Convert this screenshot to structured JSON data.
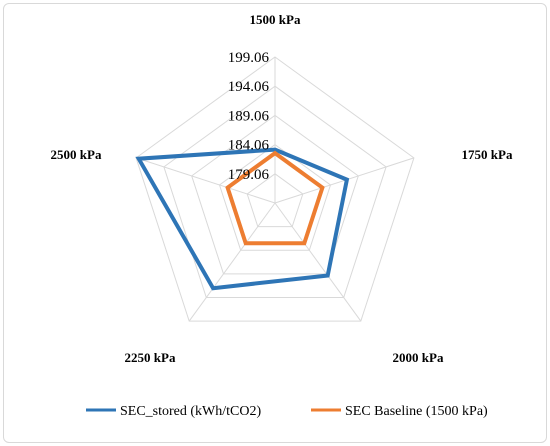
{
  "chart_data": {
    "type": "radar",
    "axes": [
      "1500 kPa",
      "1750 kPa",
      "2000 kPa",
      "2250 kPa",
      "2500 kPa"
    ],
    "ticks": [
      "179.06",
      "184.06",
      "189.06",
      "194.06",
      "199.06"
    ],
    "range": [
      174.06,
      199.06
    ],
    "grid": true,
    "legend_position": "bottom",
    "series": [
      {
        "name": "SEC_stored (kWh/tCO2)",
        "color": "#2e75b6",
        "values": [
          183.2,
          187.0,
          189.4,
          192.1,
          198.6
        ]
      },
      {
        "name": "SEC Baseline (1500 kPa)",
        "color": "#ed7d31",
        "values": [
          182.6,
          182.6,
          182.6,
          182.6,
          182.6
        ]
      }
    ]
  }
}
